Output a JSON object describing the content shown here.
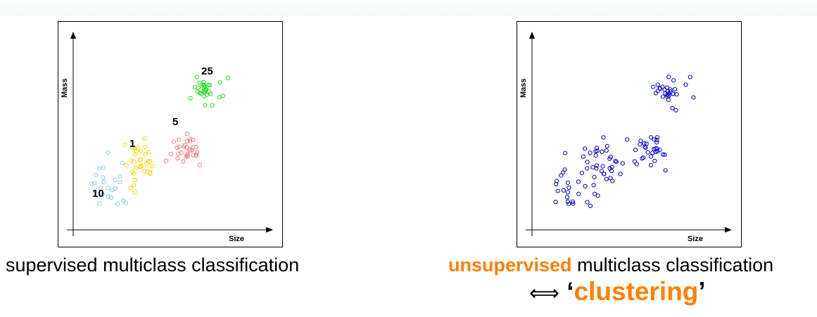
{
  "colors": {
    "orange_accent": "#ff7f00",
    "class_10": "#87ceeb",
    "class_1": "#ffd700",
    "class_5": "#f08080",
    "class_25": "#22dd22",
    "unlabeled": "#0000cc"
  },
  "left_plot": {
    "xlabel": "Size",
    "ylabel": "Mass",
    "class_labels": [
      "10",
      "1",
      "5",
      "25"
    ]
  },
  "right_plot": {
    "xlabel": "Size",
    "ylabel": "Mass"
  },
  "captions": {
    "left": "supervised multiclass classification",
    "right_accent": "unsupervised",
    "right_rest": " multiclass classification",
    "equiv_symbol": "⟺",
    "quote_open": "‘",
    "clustering_word": "clustering",
    "quote_close": "’"
  }
}
